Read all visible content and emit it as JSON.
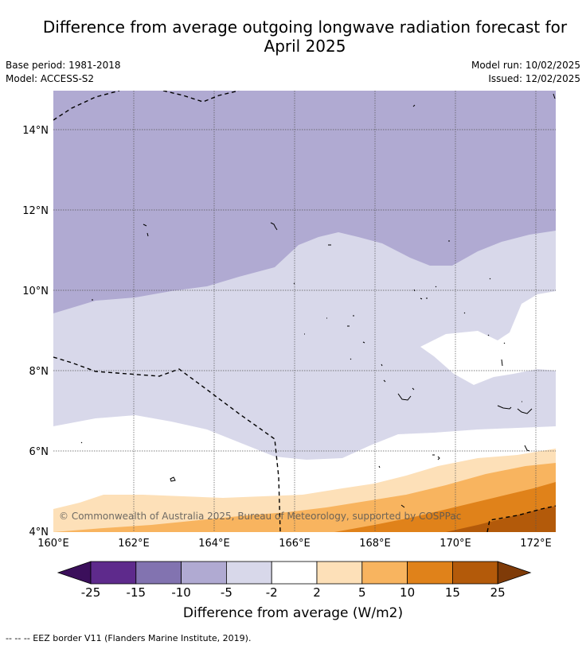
{
  "title_line1": "Difference from average outgoing longwave radiation forecast for",
  "title_line2": "April 2025",
  "base_period": "Base period: 1981-2018",
  "model": "Model: ACCESS-S2",
  "model_run": "Model run: 10/02/2025",
  "issued": "Issued: 12/02/2025",
  "copyright": "© Commonwealth of Australia 2025, Bureau of Meteorology, supported by COSPPac",
  "lat_labels": [
    "14°N",
    "12°N",
    "10°N",
    "8°N",
    "6°N",
    "4°N"
  ],
  "lon_labels": [
    "160°E",
    "162°E",
    "164°E",
    "166°E",
    "168°E",
    "170°E",
    "172°E"
  ],
  "colorbar": {
    "ticks": [
      "-25",
      "-15",
      "-10",
      "-5",
      "-2",
      "2",
      "5",
      "10",
      "15",
      "25"
    ],
    "colors": [
      "#3b0f5b",
      "#5e2a8c",
      "#8273b0",
      "#b0aad2",
      "#d8d8ea",
      "#ffffff",
      "#fde0b8",
      "#f8b45f",
      "#e0821a",
      "#b35a0a",
      "#7f3b08"
    ],
    "label": "Difference from average (W/m2)"
  },
  "footer": "--  --  -- EEZ border V11 (Flanders Marine Institute, 2019)."
}
